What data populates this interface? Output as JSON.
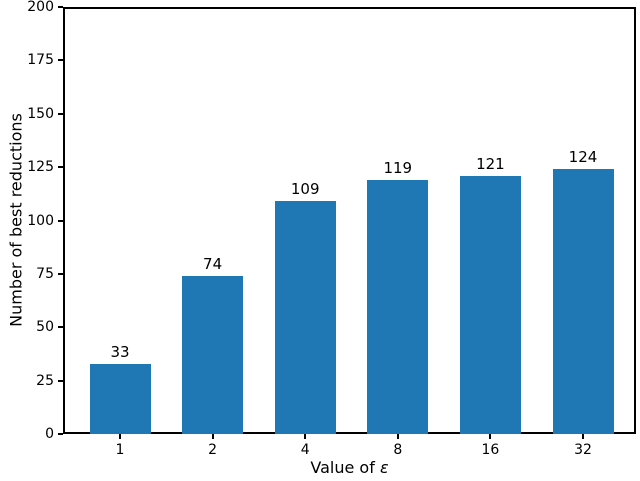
{
  "chart_data": {
    "type": "bar",
    "title": "",
    "categories": [
      "1",
      "2",
      "4",
      "8",
      "16",
      "32"
    ],
    "values": [
      33,
      74,
      109,
      119,
      121,
      124
    ],
    "bar_labels": [
      "33",
      "74",
      "109",
      "119",
      "121",
      "124"
    ],
    "xlabel": "Value of ε",
    "xlabel_text": "Value of ",
    "xlabel_var": "ε",
    "ylabel": "Number of best reductions",
    "ylim": [
      0,
      200
    ],
    "yticks": [
      0,
      25,
      50,
      75,
      100,
      125,
      150,
      175,
      200
    ],
    "bar_color": "#1f77b4",
    "axis_color": "#000000",
    "background_color": "#ffffff",
    "grid": false,
    "legend": null
  }
}
